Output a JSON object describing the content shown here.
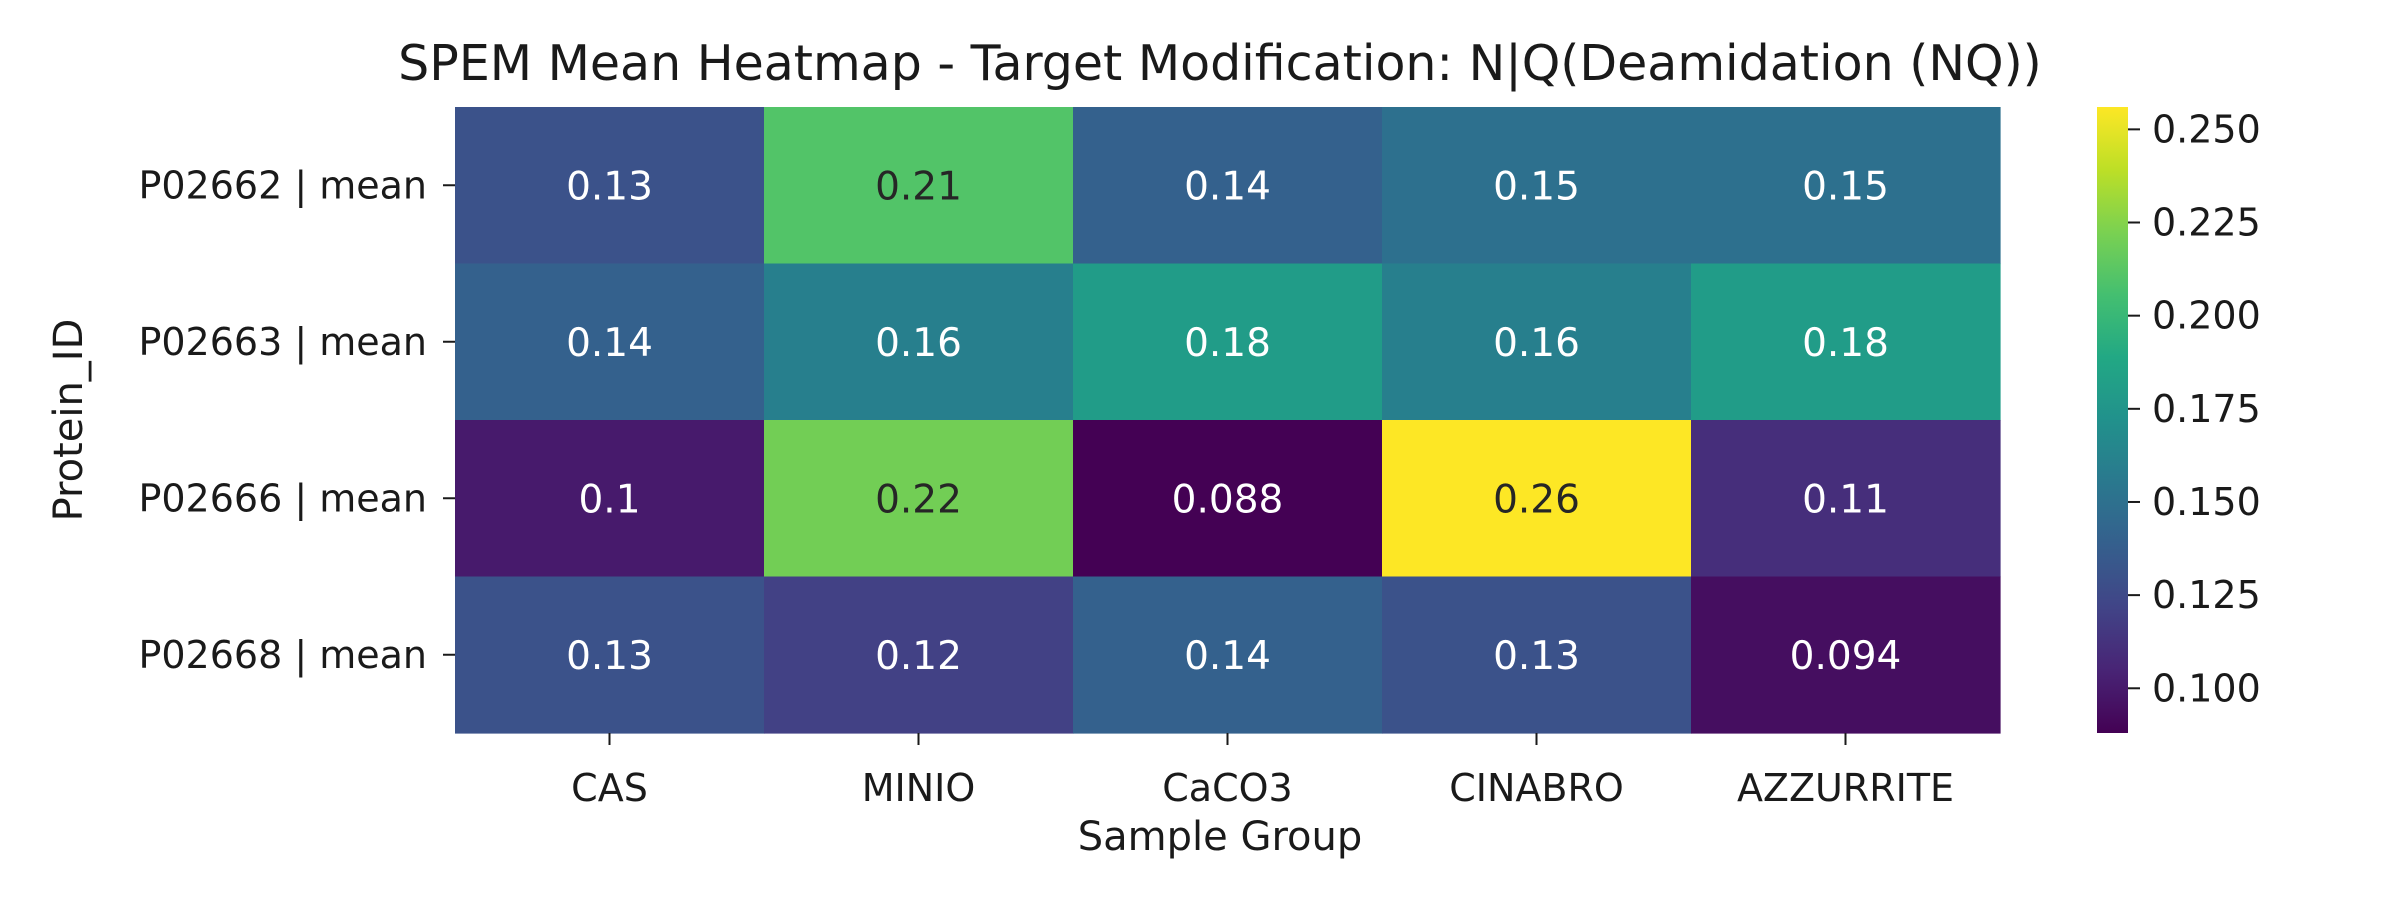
{
  "chart_data": {
    "type": "heatmap",
    "title": "SPEM Mean Heatmap - Target Modification: N|Q(Deamidation (NQ))",
    "xlabel": "Sample Group",
    "ylabel": "Protein_ID",
    "x_categories": [
      "CAS",
      "MINIO",
      "CaCO3",
      "CINABRO",
      "AZZURRITE"
    ],
    "y_categories": [
      "P02662 | mean",
      "P02663 | mean",
      "P02666 | mean",
      "P02668 | mean"
    ],
    "values": [
      [
        0.13,
        0.21,
        0.14,
        0.15,
        0.15
      ],
      [
        0.14,
        0.16,
        0.18,
        0.16,
        0.18
      ],
      [
        0.1,
        0.22,
        0.088,
        0.26,
        0.11
      ],
      [
        0.13,
        0.12,
        0.14,
        0.13,
        0.094
      ]
    ],
    "cell_labels": [
      [
        "0.13",
        "0.21",
        "0.14",
        "0.15",
        "0.15"
      ],
      [
        "0.14",
        "0.16",
        "0.18",
        "0.16",
        "0.18"
      ],
      [
        "0.1",
        "0.22",
        "0.088",
        "0.26",
        "0.11"
      ],
      [
        "0.13",
        "0.12",
        "0.14",
        "0.13",
        "0.094"
      ]
    ],
    "colormap": "viridis",
    "color_range": [
      0.088,
      0.256
    ],
    "colorbar": {
      "ticks": [
        0.1,
        0.125,
        0.15,
        0.175,
        0.2,
        0.225,
        0.25
      ],
      "tick_labels": [
        "0.100",
        "0.125",
        "0.150",
        "0.175",
        "0.200",
        "0.225",
        "0.250"
      ]
    },
    "legend_placement": "right",
    "grid": false
  }
}
